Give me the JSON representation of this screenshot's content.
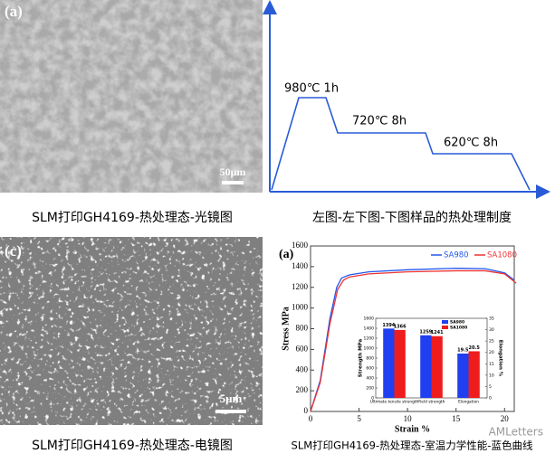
{
  "panels": [
    {
      "label": "(a)",
      "scale_bar": "50μm",
      "caption": "SLM打印GH4169-热处理态-光镜图"
    },
    {
      "caption": "左图-左下图-下图样品的热处理制度",
      "steps": [
        "980℃ 1h",
        "720℃ 8h",
        "620℃ 8h"
      ]
    },
    {
      "label": "(c)",
      "scale_bar": "5μm",
      "caption": "SLM打印GH4169-热处理态-电镜图"
    },
    {
      "caption": "SLM打印GH4169-热处理态-室温力学性能-蓝色曲线"
    }
  ],
  "watermark": "AMLetters",
  "chart_data": [
    {
      "type": "line",
      "label": "(a)",
      "x_label": "Strain  %",
      "y_label": "Stress MPa",
      "xlim": [
        0,
        21
      ],
      "xticks": [
        0,
        5,
        10,
        15,
        20
      ],
      "ylim": [
        0,
        1600
      ],
      "yticks": [
        0,
        200,
        400,
        600,
        800,
        1000,
        1200,
        1400,
        1600
      ],
      "legend": "top-right",
      "series": [
        {
          "name": "SA980",
          "color": "#2255ee",
          "x": [
            0,
            1,
            2,
            2.7,
            3.2,
            4,
            6,
            10,
            15,
            18,
            20,
            21
          ],
          "values": [
            0,
            300,
            900,
            1200,
            1290,
            1320,
            1350,
            1370,
            1385,
            1380,
            1340,
            1270
          ]
        },
        {
          "name": "SA1080",
          "color": "#ee3333",
          "x": [
            0,
            1,
            2,
            2.8,
            3.4,
            4,
            6,
            10,
            15,
            18,
            20,
            21.2
          ],
          "values": [
            0,
            280,
            850,
            1180,
            1270,
            1300,
            1330,
            1350,
            1360,
            1360,
            1330,
            1240
          ]
        }
      ]
    },
    {
      "type": "bar",
      "y_label": "Strength MPa",
      "y2_label": "Elongation %",
      "categories": [
        "Ultimate tensile strength",
        "Yield strength",
        "Elongation"
      ],
      "axis_by_category": [
        "y",
        "y",
        "y2"
      ],
      "ylim": [
        0,
        1600
      ],
      "yticks": [
        0,
        200,
        400,
        600,
        800,
        1000,
        1200,
        1400,
        1600
      ],
      "y2lim": [
        0,
        35
      ],
      "y2ticks": [
        0,
        5,
        10,
        15,
        20,
        25,
        30,
        35
      ],
      "series": [
        {
          "name": "SA980",
          "color": "#1f3ff0",
          "values": [
            1394,
            1259,
            19.5
          ]
        },
        {
          "name": "SA1080",
          "color": "#ee1c1c",
          "values": [
            1366,
            1241,
            20.5
          ]
        }
      ]
    }
  ]
}
